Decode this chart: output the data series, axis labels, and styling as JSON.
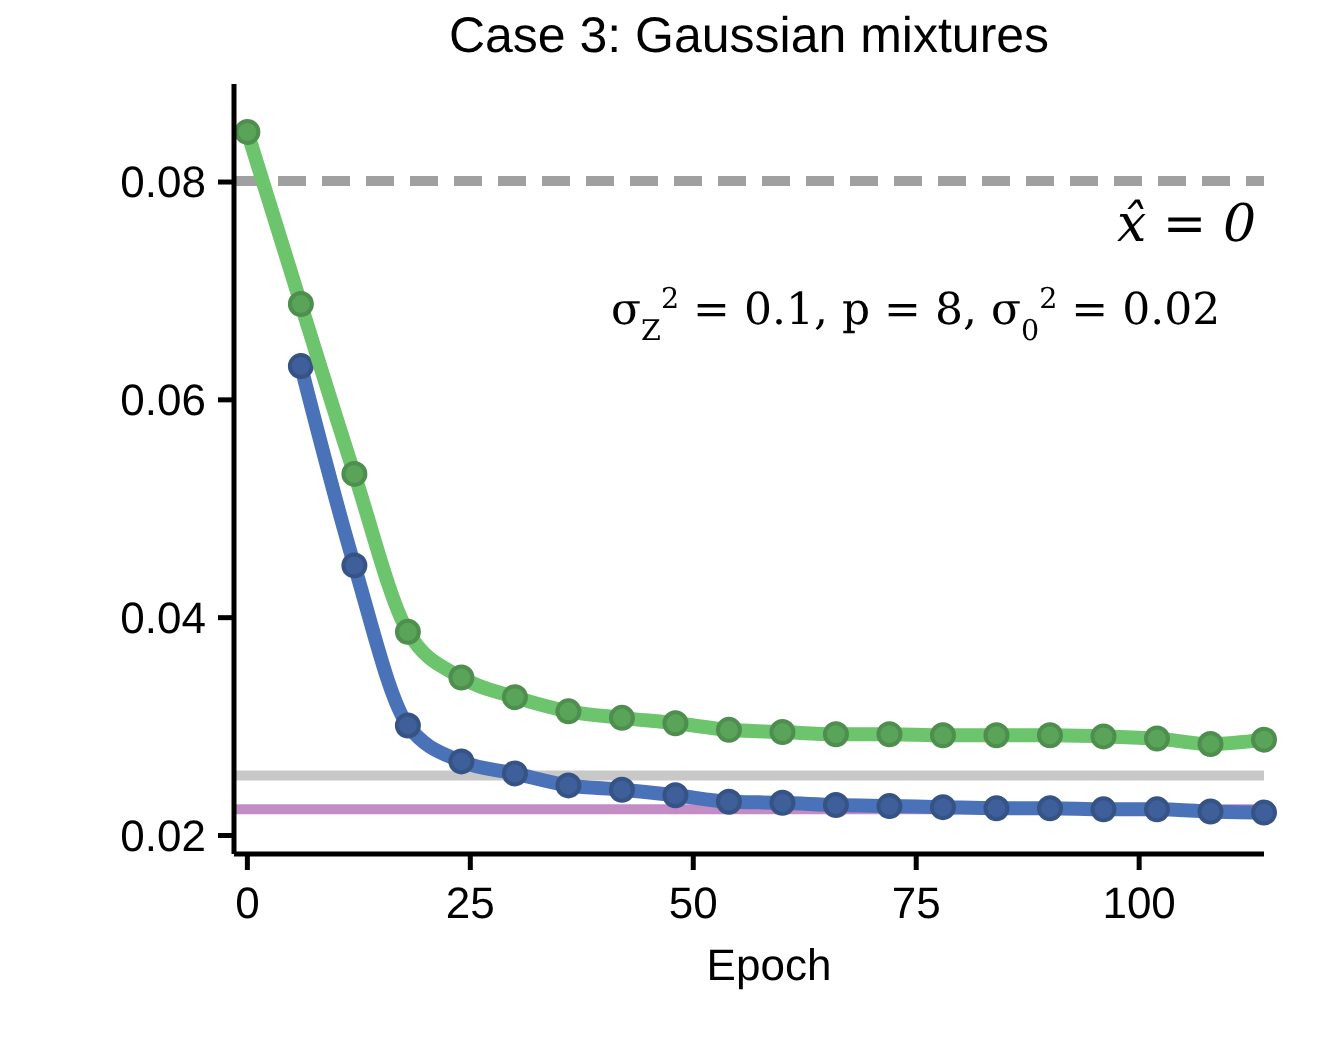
{
  "chart_data": {
    "type": "line",
    "title": "Case 3: Gaussian mixtures",
    "xlabel": "Epoch",
    "x": [
      0,
      6,
      12,
      18,
      24,
      30,
      36,
      42,
      48,
      54,
      60,
      66,
      72,
      78,
      84,
      90,
      96,
      102,
      108,
      114
    ],
    "series": [
      {
        "color": "#4a72b8",
        "values": [
          null,
          0.0631,
          0.0448,
          0.0301,
          0.0268,
          0.0257,
          0.0246,
          0.0242,
          0.0237,
          0.0231,
          0.023,
          0.0228,
          0.0227,
          0.0226,
          0.0225,
          0.0225,
          0.0224,
          0.0224,
          0.0222,
          0.0221
        ]
      },
      {
        "color": "#6cc46c",
        "values": [
          0.0846,
          0.0688,
          0.0532,
          0.0387,
          0.0345,
          0.0327,
          0.0314,
          0.0308,
          0.0303,
          0.0297,
          0.0295,
          0.0293,
          0.0293,
          0.0292,
          0.0292,
          0.0292,
          0.0291,
          0.0289,
          0.0284,
          0.0288
        ]
      }
    ],
    "xlim": [
      -1.5,
      114
    ],
    "xticks": [
      0,
      25,
      50,
      75,
      100
    ],
    "ylim": [
      0.0183,
      0.089
    ],
    "yticks": [
      {
        "value": 0.02,
        "label": "0.02"
      },
      {
        "value": 0.04,
        "label": "0.04"
      },
      {
        "value": 0.06,
        "label": "0.06"
      },
      {
        "value": 0.08,
        "label": "0.08"
      }
    ],
    "ref_lines": [
      {
        "axis": "y",
        "value": 0.0801,
        "label": "x̂ = 0",
        "color": "#a0a0a0",
        "line_style": "dashed"
      },
      {
        "axis": "y",
        "value": 0.0255,
        "color": "#c8c8c8",
        "line_style": "solid"
      },
      {
        "axis": "y",
        "value": 0.0224,
        "color": "#c48cc4",
        "line_style": "solid"
      }
    ],
    "annotations": [
      "σ$_{Z}$$^{2}$ = 0.1, p = 8, σ$_{0}$$^{2}$ = 0.02"
    ],
    "marker": "circle",
    "line_style": "solid",
    "grid": false
  }
}
